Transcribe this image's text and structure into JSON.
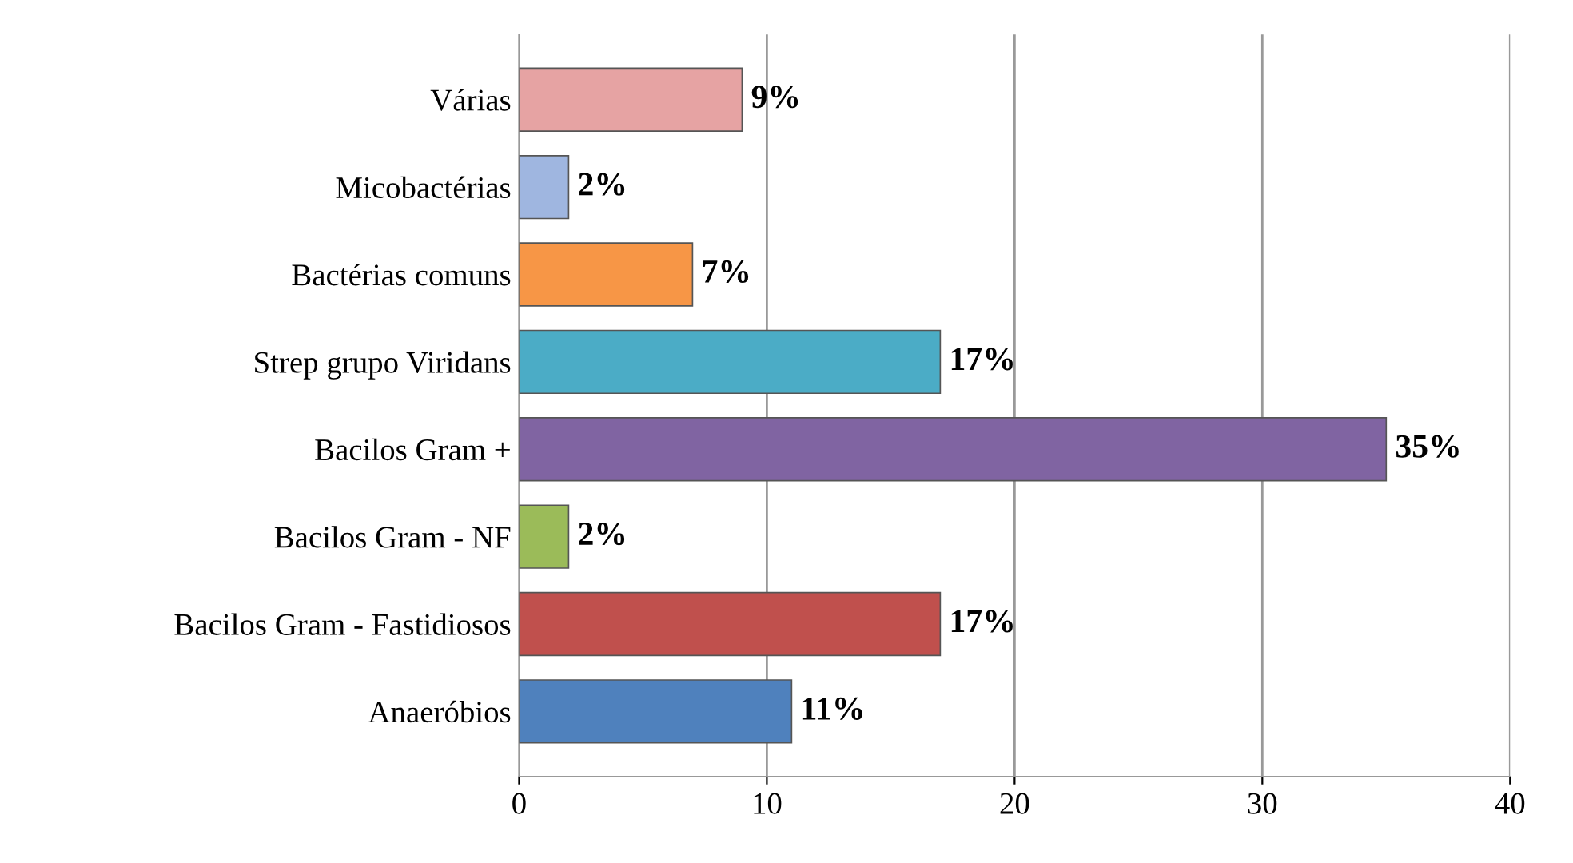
{
  "chart_data": {
    "type": "bar",
    "orientation": "horizontal",
    "categories": [
      "Várias",
      "Micobactérias",
      "Bactérias comuns",
      "Strep grupo Viridans",
      "Bacilos Gram +",
      "Bacilos Gram - NF",
      "Bacilos Gram - Fastidiosos",
      "Anaeróbios"
    ],
    "values": [
      9,
      2,
      7,
      17,
      35,
      2,
      17,
      11
    ],
    "value_labels": [
      "9%",
      "2%",
      "7%",
      "17%",
      "35%",
      "2%",
      "17%",
      "11%"
    ],
    "colors": [
      "#e6a3a3",
      "#9fb6e0",
      "#f79646",
      "#4bacc6",
      "#8064a2",
      "#9bbb59",
      "#c0504d",
      "#4f81bd"
    ],
    "xlim": [
      0,
      40
    ],
    "xticks": [
      0,
      10,
      20,
      30,
      40
    ],
    "grid": "x"
  }
}
